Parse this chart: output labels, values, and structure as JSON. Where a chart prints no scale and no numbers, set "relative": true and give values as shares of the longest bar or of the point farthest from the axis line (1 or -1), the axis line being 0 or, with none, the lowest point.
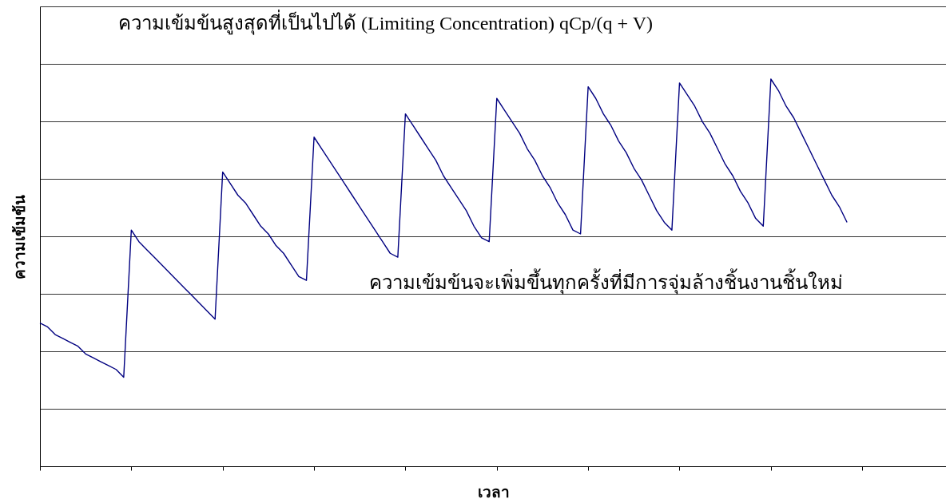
{
  "chart_data": {
    "type": "line",
    "relative": true,
    "xlabel": "เวลา",
    "ylabel": "ความเข้มข้น",
    "annotations": [
      "ความเข้มข้นสูงสุดที่เป็นไปได้ (Limiting Concentration) qCp/(q + V)",
      "ความเข้มข้นจะเพิ่มขึ้นทุกครั้งที่มีการจุ่มล้างชิ้นงานชิ้นใหม่"
    ],
    "categories": [
      null,
      null,
      null,
      null,
      null,
      null,
      null,
      null,
      null,
      null,
      null,
      null,
      null,
      null,
      null,
      null,
      null,
      null,
      null,
      null,
      null,
      null,
      null,
      null,
      null,
      null,
      null,
      null,
      null,
      null,
      null,
      null,
      null,
      null,
      null,
      null,
      null,
      null,
      null,
      null,
      null,
      null,
      null,
      null,
      null,
      null,
      null,
      null,
      null,
      null,
      null,
      null,
      null,
      null,
      null,
      null,
      null,
      null,
      null,
      null,
      null,
      null,
      null,
      null,
      null,
      null,
      null,
      null,
      null,
      null,
      null,
      null,
      null,
      null,
      null,
      null,
      null,
      null,
      null,
      null,
      null,
      null,
      null,
      null,
      null,
      null,
      null,
      null,
      null,
      null,
      null,
      null,
      null,
      null,
      null,
      null,
      null,
      null,
      null,
      null,
      null,
      null,
      null,
      null,
      null,
      null,
      null,
      null,
      null,
      null,
      null,
      null,
      null,
      null,
      null,
      null,
      null,
      null,
      null,
      null
    ],
    "series": [
      {
        "color": "#000080",
        "values": [
          0.37,
          0.36,
          0.34,
          0.33,
          0.32,
          0.31,
          0.29,
          0.28,
          0.27,
          0.26,
          0.25,
          0.23,
          0.61,
          0.58,
          0.56,
          0.54,
          0.52,
          0.5,
          0.48,
          0.46,
          0.44,
          0.42,
          0.4,
          0.38,
          0.76,
          0.73,
          0.7,
          0.68,
          0.65,
          0.62,
          0.6,
          0.57,
          0.55,
          0.52,
          0.49,
          0.48,
          0.85,
          0.82,
          0.79,
          0.76,
          0.73,
          0.7,
          0.67,
          0.64,
          0.61,
          0.58,
          0.55,
          0.54,
          0.91,
          0.88,
          0.85,
          0.82,
          0.79,
          0.75,
          0.72,
          0.69,
          0.66,
          0.62,
          0.59,
          0.58,
          0.95,
          0.92,
          0.89,
          0.86,
          0.82,
          0.79,
          0.75,
          0.72,
          0.68,
          0.65,
          0.61,
          0.6,
          0.98,
          0.95,
          0.91,
          0.88,
          0.84,
          0.81,
          0.77,
          0.74,
          0.7,
          0.66,
          0.63,
          0.61,
          0.99,
          0.96,
          0.93,
          0.89,
          0.86,
          0.82,
          0.78,
          0.75,
          0.71,
          0.68,
          0.64,
          0.62,
          1.0,
          0.97,
          0.93,
          0.9,
          0.86,
          0.82,
          0.78,
          0.74,
          0.7,
          0.67,
          0.63,
          null,
          null,
          null,
          null,
          null,
          null,
          null,
          null,
          null,
          null,
          null,
          null,
          null
        ]
      }
    ],
    "grid": "y",
    "tick_labels": false,
    "line_style": "solid"
  }
}
